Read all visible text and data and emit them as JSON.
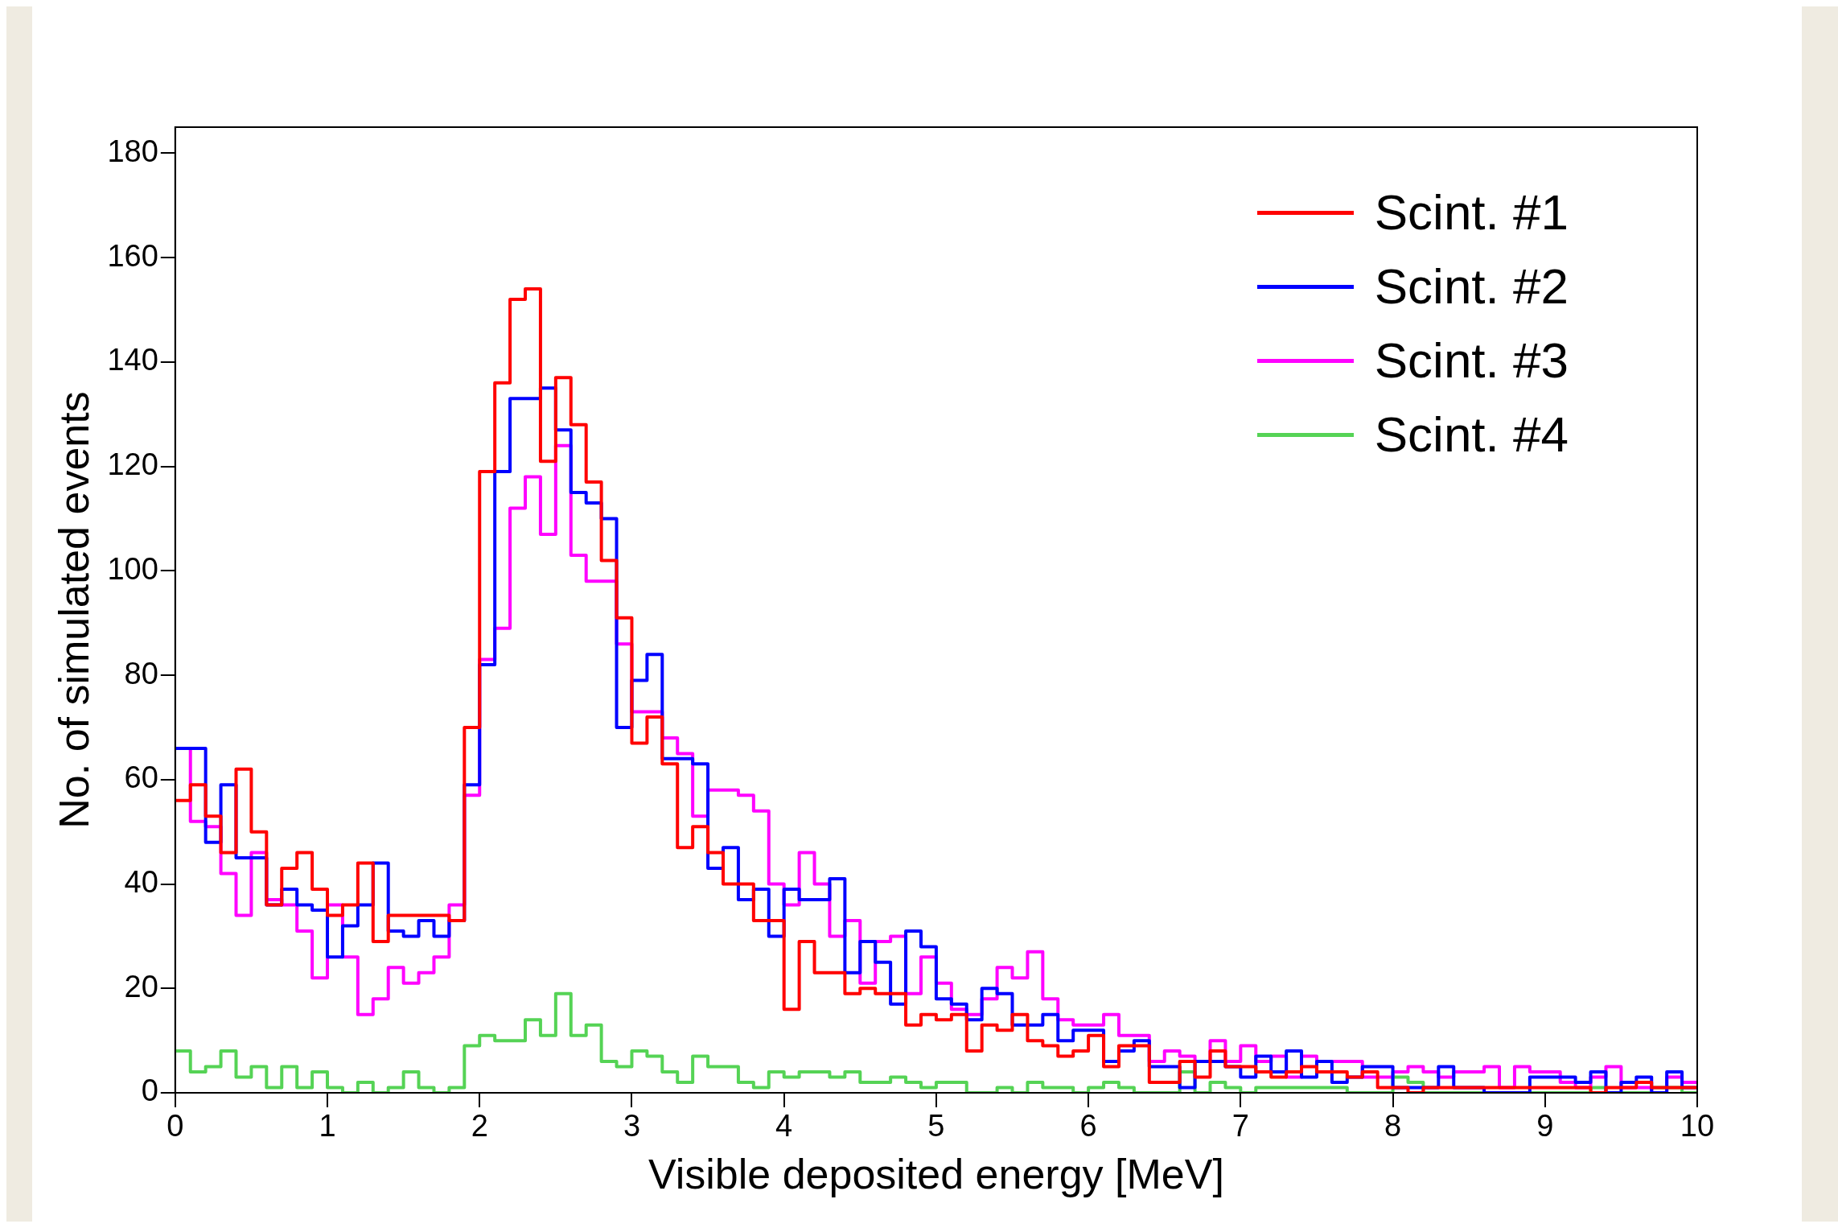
{
  "chart_data": {
    "type": "histogram",
    "xlabel": "Visible deposited energy [MeV]",
    "ylabel": "No. of simulated events",
    "bins": [
      0,
      0.1,
      0.2,
      0.3,
      0.4,
      0.5,
      0.6,
      0.7,
      0.8,
      0.9,
      1,
      1.1,
      1.2,
      1.3,
      1.4,
      1.5,
      1.6,
      1.7,
      1.8,
      1.9,
      2,
      2.1,
      2.2,
      2.3,
      2.4,
      2.5,
      2.6,
      2.7,
      2.8,
      2.9,
      3,
      3.1,
      3.2,
      3.3,
      3.4,
      3.5,
      3.6,
      3.7,
      3.8,
      3.9,
      4,
      4.1,
      4.2,
      4.3,
      4.4,
      4.5,
      4.6,
      4.7,
      4.8,
      4.9,
      5,
      5.1,
      5.2,
      5.3,
      5.4,
      5.5,
      5.6,
      5.7,
      5.8,
      5.9,
      6,
      6.1,
      6.2,
      6.3,
      6.4,
      6.5,
      6.6,
      6.7,
      6.8,
      6.9,
      7,
      7.1,
      7.2,
      7.3,
      7.4,
      7.5,
      7.6,
      7.7,
      7.8,
      7.9,
      8,
      8.1,
      8.2,
      8.3,
      8.4,
      8.5,
      8.6,
      8.7,
      8.8,
      8.9,
      9,
      9.1,
      9.2,
      9.3,
      9.4,
      9.5,
      9.6,
      9.7,
      9.8,
      9.9,
      10
    ],
    "series": [
      {
        "name": "Scint. #1",
        "color": "#ff0000",
        "values": [
          56,
          59,
          53,
          46,
          62,
          50,
          36,
          43,
          46,
          39,
          34,
          36,
          44,
          29,
          34,
          34,
          34,
          34,
          33,
          70,
          119,
          136,
          152,
          154,
          121,
          137,
          128,
          117,
          102,
          91,
          67,
          72,
          63,
          47,
          51,
          46,
          40,
          40,
          33,
          33,
          16,
          29,
          23,
          23,
          19,
          20,
          19,
          19,
          13,
          15,
          14,
          15,
          8,
          13,
          12,
          15,
          10,
          9,
          7,
          8,
          11,
          5,
          9,
          9,
          2,
          2,
          6,
          3,
          8,
          5,
          5,
          4,
          3,
          4,
          5,
          4,
          4,
          3,
          4,
          1,
          1,
          0,
          1,
          1,
          1,
          1,
          1,
          1,
          1,
          1,
          1,
          1,
          1,
          0,
          1,
          1,
          2,
          1,
          1,
          1
        ]
      },
      {
        "name": "Scint. #2",
        "color": "#0000ff",
        "values": [
          66,
          66,
          48,
          59,
          45,
          45,
          36,
          39,
          36,
          35,
          26,
          32,
          36,
          44,
          31,
          30,
          33,
          30,
          33,
          59,
          82,
          119,
          133,
          133,
          135,
          127,
          115,
          113,
          110,
          70,
          79,
          84,
          64,
          64,
          63,
          43,
          47,
          37,
          39,
          30,
          39,
          37,
          37,
          41,
          23,
          29,
          25,
          17,
          31,
          28,
          18,
          17,
          14,
          20,
          19,
          13,
          13,
          15,
          10,
          12,
          12,
          6,
          8,
          10,
          5,
          5,
          1,
          6,
          6,
          5,
          3,
          7,
          4,
          8,
          3,
          6,
          2,
          3,
          5,
          5,
          1,
          1,
          1,
          5,
          1,
          1,
          0,
          0,
          0,
          3,
          3,
          3,
          2,
          4,
          0,
          2,
          3,
          0,
          4,
          1
        ]
      },
      {
        "name": "Scint. #3",
        "color": "#ff00ff",
        "values": [
          66,
          52,
          51,
          42,
          34,
          46,
          37,
          36,
          31,
          22,
          36,
          26,
          15,
          18,
          24,
          21,
          23,
          26,
          36,
          57,
          83,
          89,
          112,
          118,
          107,
          124,
          103,
          98,
          98,
          86,
          73,
          73,
          68,
          65,
          53,
          58,
          58,
          57,
          54,
          40,
          36,
          46,
          40,
          30,
          33,
          21,
          29,
          30,
          19,
          26,
          21,
          16,
          15,
          18,
          24,
          22,
          27,
          18,
          14,
          13,
          13,
          15,
          11,
          11,
          6,
          8,
          7,
          6,
          10,
          6,
          9,
          6,
          7,
          3,
          7,
          6,
          6,
          6,
          3,
          3,
          4,
          5,
          4,
          3,
          4,
          4,
          5,
          1,
          5,
          4,
          4,
          2,
          1,
          3,
          5,
          1,
          1,
          0,
          3,
          2
        ]
      },
      {
        "name": "Scint. #4",
        "color": "#55d355",
        "values": [
          8,
          4,
          5,
          8,
          3,
          5,
          1,
          5,
          1,
          4,
          1,
          0,
          2,
          0,
          1,
          4,
          1,
          0,
          1,
          9,
          11,
          10,
          10,
          14,
          11,
          19,
          11,
          13,
          6,
          5,
          8,
          7,
          4,
          2,
          7,
          5,
          5,
          2,
          1,
          4,
          3,
          4,
          4,
          3,
          4,
          2,
          2,
          3,
          2,
          1,
          2,
          2,
          0,
          0,
          1,
          0,
          2,
          1,
          1,
          0,
          1,
          2,
          1,
          0,
          0,
          0,
          4,
          0,
          2,
          1,
          0,
          1,
          1,
          1,
          1,
          1,
          1,
          0,
          0,
          0,
          3,
          2,
          0,
          0,
          0,
          0,
          0,
          0,
          0,
          0,
          0,
          0,
          0,
          1,
          0,
          0,
          0,
          1,
          1,
          0
        ]
      }
    ],
    "xlim": [
      0,
      10
    ],
    "xticks": [
      0,
      1,
      2,
      3,
      4,
      5,
      6,
      7,
      8,
      9,
      10
    ],
    "ylim": [
      0,
      185
    ],
    "yticks": [
      0,
      20,
      40,
      60,
      80,
      100,
      120,
      140,
      160,
      180
    ],
    "grid": false,
    "legend": "top right"
  }
}
